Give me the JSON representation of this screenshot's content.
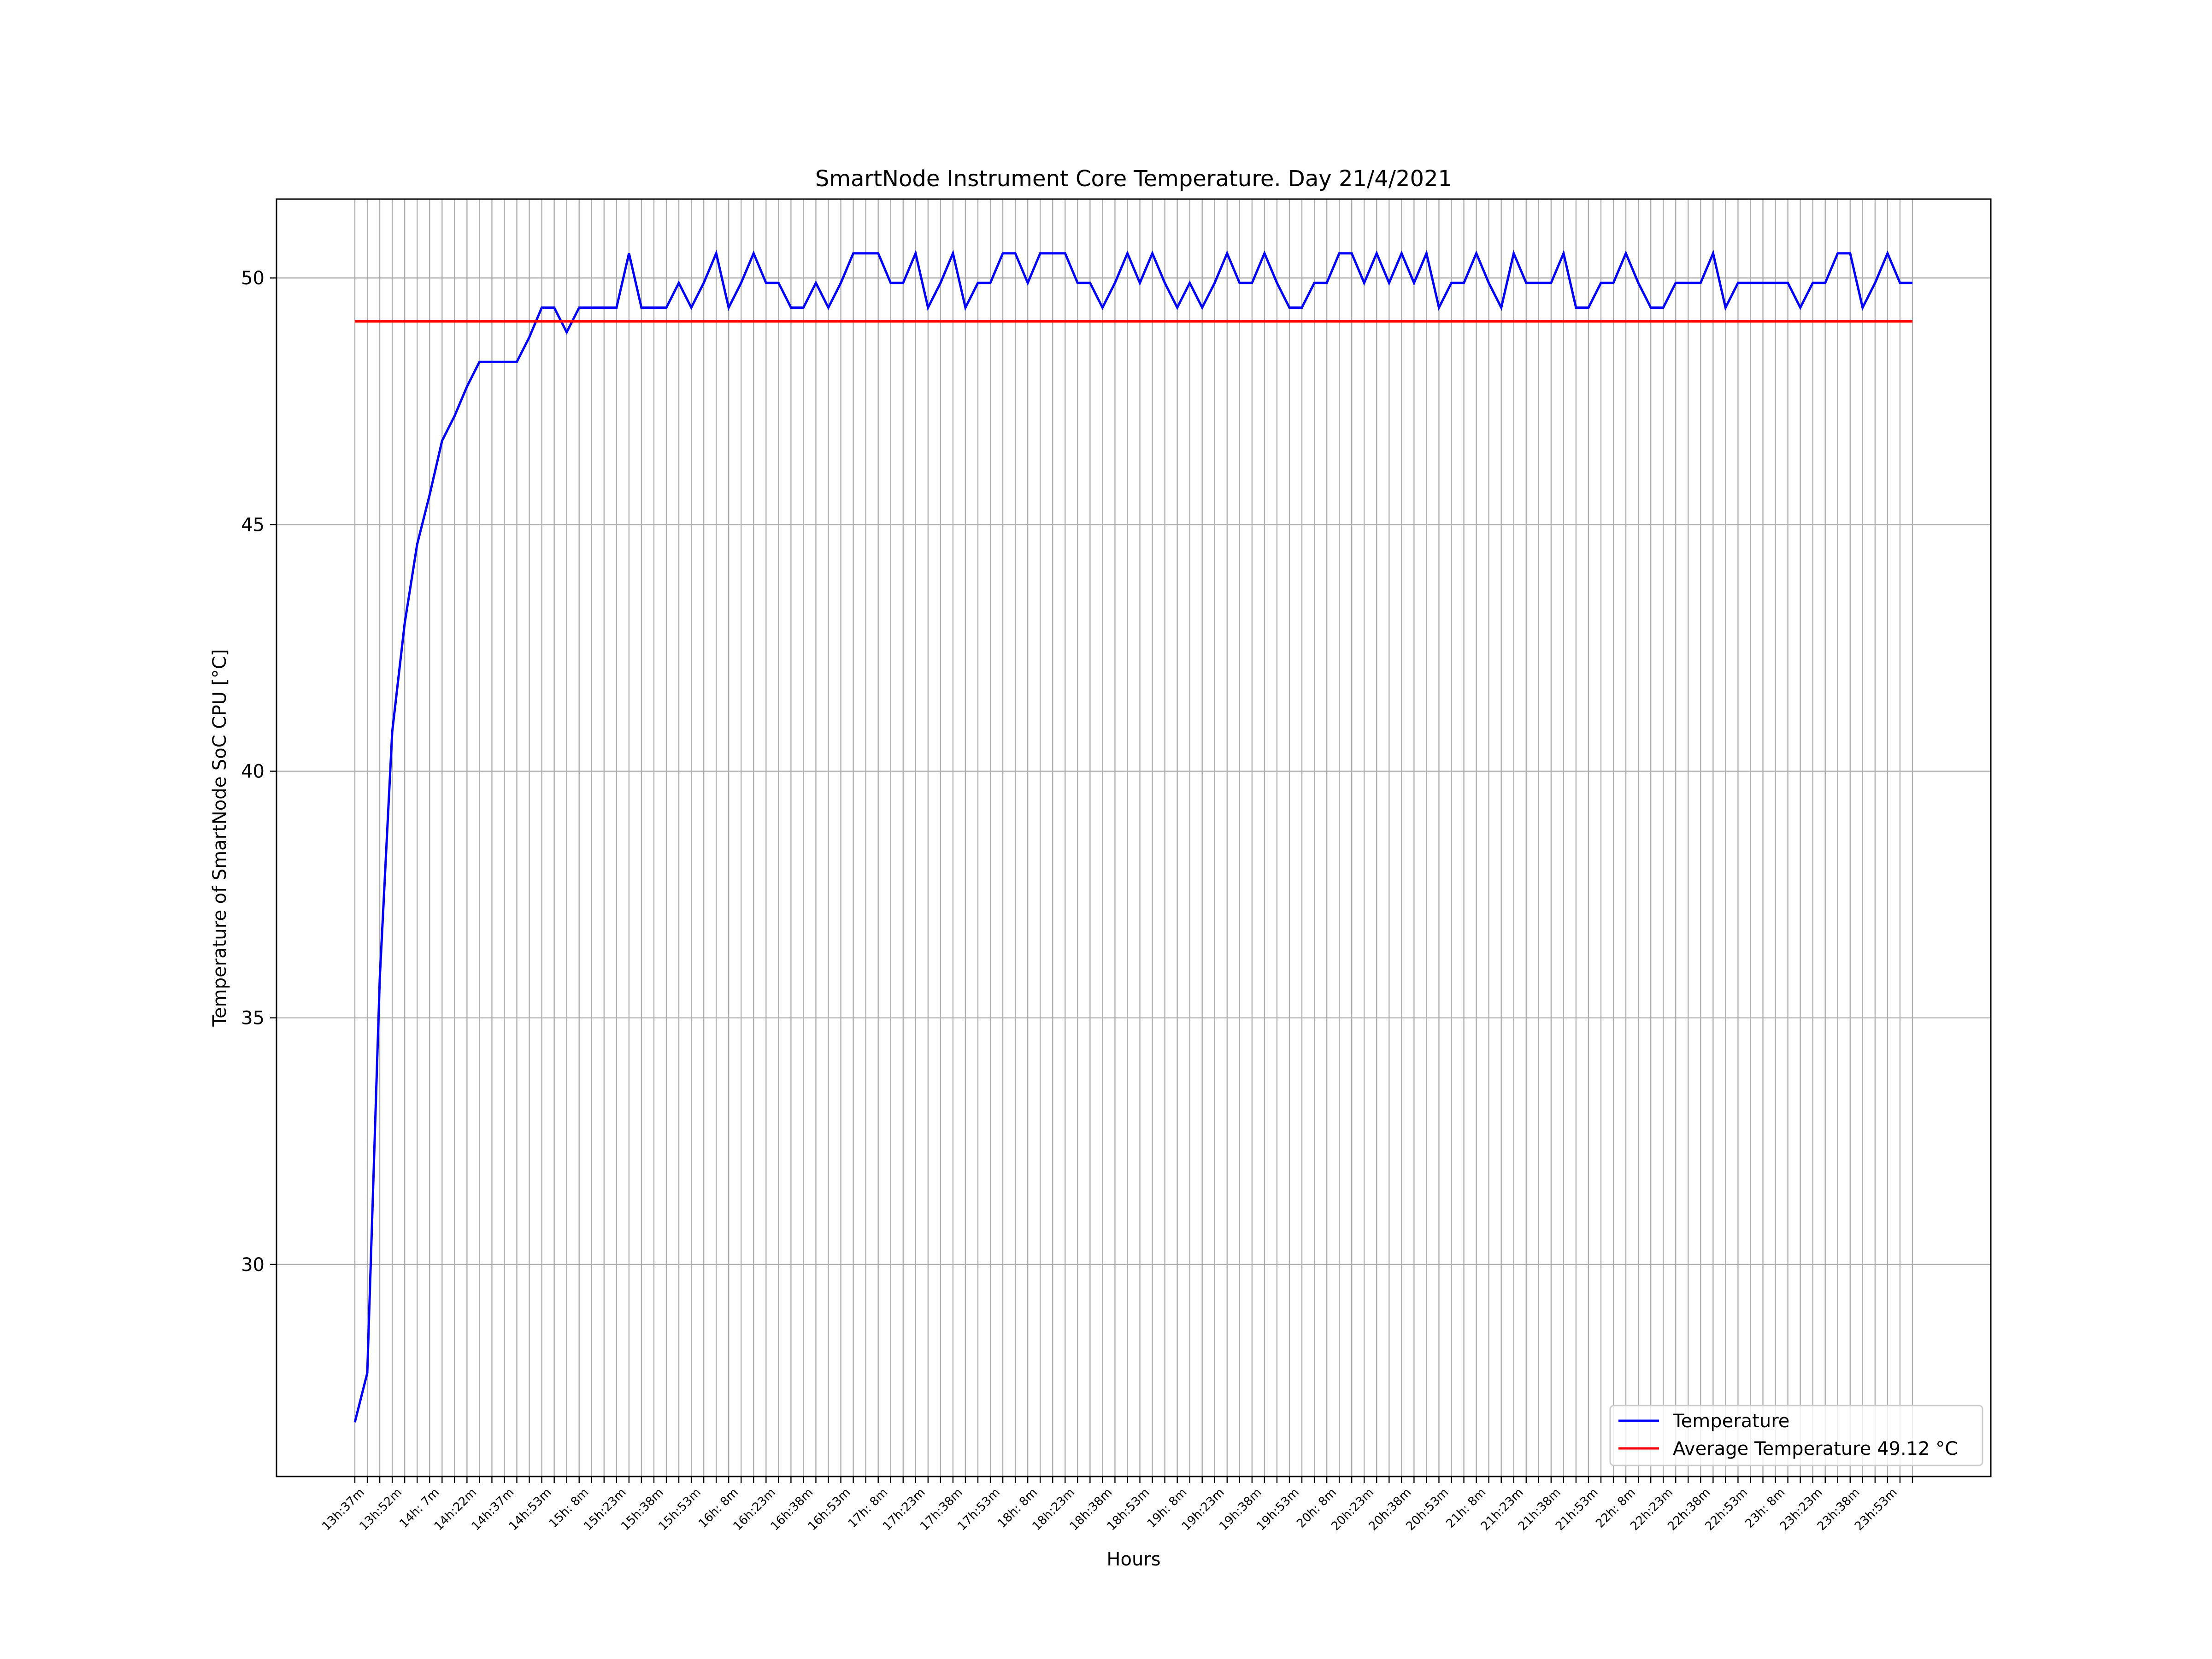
{
  "chart_data": {
    "type": "line",
    "title": "SmartNode Instrument Core Temperature. Day 21/4/2021",
    "xlabel": "Hours",
    "ylabel": "Temperature of SmartNode SoC CPU [°C]",
    "ylim": [
      25.7,
      51.6
    ],
    "yticks": [
      30,
      35,
      40,
      45,
      50
    ],
    "grid": true,
    "legend_position": "lower-right",
    "x_tick_labels": [
      "13h:37m",
      "13h:52m",
      "14h: 7m",
      "14h:22m",
      "14h:37m",
      "14h:53m",
      "15h: 8m",
      "15h:23m",
      "15h:38m",
      "15h:53m",
      "16h: 8m",
      "16h:23m",
      "16h:38m",
      "16h:53m",
      "17h: 8m",
      "17h:23m",
      "17h:38m",
      "17h:53m",
      "18h: 8m",
      "18h:23m",
      "18h:38m",
      "18h:53m",
      "19h: 8m",
      "19h:23m",
      "19h:38m",
      "19h:53m",
      "20h: 8m",
      "20h:23m",
      "20h:38m",
      "20h:53m",
      "21h: 8m",
      "21h:23m",
      "21h:38m",
      "21h:53m",
      "22h: 8m",
      "22h:23m",
      "22h:38m",
      "22h:53m",
      "23h: 8m",
      "23h:23m",
      "23h:38m",
      "23h:53m"
    ],
    "series": [
      {
        "name": "Temperature",
        "color": "#0000ff",
        "values": [
          26.8,
          27.8,
          35.8,
          40.8,
          43.0,
          44.6,
          45.6,
          46.7,
          47.2,
          47.8,
          48.3,
          48.3,
          48.3,
          48.3,
          48.8,
          49.4,
          49.4,
          48.9,
          49.4,
          49.4,
          49.4,
          49.4,
          50.5,
          49.4,
          49.4,
          49.4,
          49.9,
          49.4,
          49.9,
          50.5,
          49.4,
          49.9,
          50.5,
          49.9,
          49.9,
          49.4,
          49.4,
          49.9,
          49.4,
          49.9,
          50.5,
          50.5,
          50.5,
          49.9,
          49.9,
          50.5,
          49.4,
          49.9,
          50.5,
          49.4,
          49.9,
          49.9,
          50.5,
          50.5,
          49.9,
          50.5,
          50.5,
          50.5,
          49.9,
          49.9,
          49.4,
          49.9,
          50.5,
          49.9,
          50.5,
          49.9,
          49.4,
          49.9,
          49.4,
          49.9,
          50.5,
          49.9,
          49.9,
          50.5,
          49.9,
          49.4,
          49.4,
          49.9,
          49.9,
          50.5,
          50.5,
          49.9,
          50.5,
          49.9,
          50.5,
          49.9,
          50.5,
          49.4,
          49.9,
          49.9,
          50.5,
          49.9,
          49.4,
          50.5,
          49.9,
          49.9,
          49.9,
          50.5,
          49.4,
          49.4,
          49.9,
          49.9,
          50.5,
          49.9,
          49.4,
          49.4,
          49.9,
          49.9,
          49.9,
          50.5,
          49.4,
          49.9,
          49.9,
          49.9,
          49.9,
          49.9,
          49.4,
          49.9,
          49.9,
          50.5,
          50.5,
          49.4,
          49.9,
          50.5,
          49.9,
          49.9
        ]
      },
      {
        "name": "Average Temperature 49.12 °C",
        "color": "#ff0000",
        "constant": 49.12
      }
    ]
  }
}
